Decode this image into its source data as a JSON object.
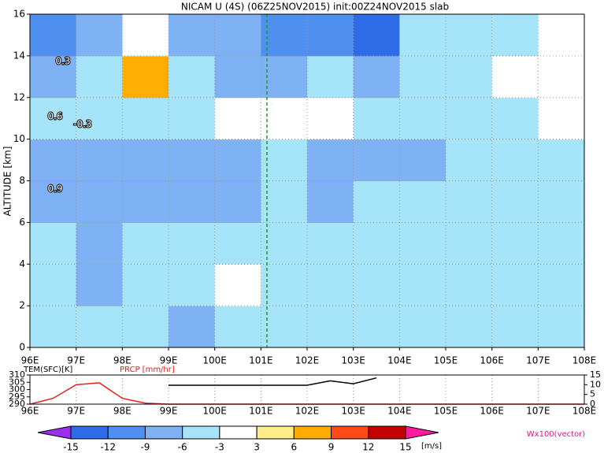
{
  "chart_data": [
    {
      "type": "heatmap",
      "title": "NICAM U (4S) (06Z25NOV2015) init:00Z24NOV2015 slab",
      "ylabel": "ALTITUDE [km]",
      "xlim": [
        96,
        108
      ],
      "xticks": [
        {
          "value": 96,
          "label": "96E"
        },
        {
          "value": 97,
          "label": "97E"
        },
        {
          "value": 98,
          "label": "98E"
        },
        {
          "value": 99,
          "label": "99E"
        },
        {
          "value": 100,
          "label": "100E"
        },
        {
          "value": 101,
          "label": "101E"
        },
        {
          "value": 102,
          "label": "102E"
        },
        {
          "value": 103,
          "label": "103E"
        },
        {
          "value": 104,
          "label": "104E"
        },
        {
          "value": 105,
          "label": "105E"
        },
        {
          "value": 106,
          "label": "106E"
        },
        {
          "value": 107,
          "label": "107E"
        },
        {
          "value": 108,
          "label": "108E"
        }
      ],
      "ylim": [
        0,
        16
      ],
      "yticks": [
        0,
        2,
        4,
        6,
        8,
        10,
        12,
        14,
        16
      ],
      "grid": true,
      "x": [
        96.5,
        97.5,
        98.5,
        99.5,
        100.5,
        101.5,
        102.5,
        103.5,
        104.5,
        105.5,
        106.5,
        107.5
      ],
      "y": [
        1,
        3,
        5,
        7,
        9,
        11,
        13,
        15
      ],
      "values": [
        [
          -4,
          -4,
          -4,
          -7,
          -4,
          -4,
          -4,
          -4,
          -4,
          -4,
          -4,
          -4
        ],
        [
          -4,
          -7,
          -4,
          -4,
          0,
          -4,
          -4,
          -4,
          -4,
          -4,
          -4,
          -4
        ],
        [
          -4,
          -7,
          -4,
          -4,
          -4,
          -4,
          -4,
          -4,
          -4,
          -4,
          -4,
          -4
        ],
        [
          -7,
          -7,
          -7,
          -7,
          -7,
          -4,
          -7,
          -4,
          -4,
          -4,
          -4,
          -4
        ],
        [
          -7,
          -7,
          -7,
          -7,
          -7,
          -4,
          -7,
          -7,
          -7,
          -4,
          -4,
          -4
        ],
        [
          -4,
          -4,
          -4,
          -4,
          0,
          0,
          0,
          -4,
          -4,
          -4,
          -4,
          0
        ],
        [
          -7,
          -4,
          7,
          -4,
          -7,
          -7,
          -4,
          -7,
          -4,
          -4,
          0,
          0
        ],
        [
          -10,
          -7,
          0,
          -7,
          -7,
          -10,
          -10,
          -13,
          -4,
          -4,
          -4,
          0
        ]
      ],
      "levels": [
        -15,
        -12,
        -9,
        -6,
        -3,
        3,
        6,
        9,
        12,
        15
      ],
      "colors": [
        "#9b2ff0",
        "#2e6be6",
        "#4f8ff0",
        "#7fb2f5",
        "#a6e4fa",
        "#ffffff",
        "#ffec8a",
        "#ffad00",
        "#ff4a1a",
        "#c40000",
        "#ff1aa0"
      ],
      "colorbar_label": "[m/s]",
      "annotation": "Wx100(vector)",
      "contour_labels": [
        "-0.3",
        "0.3",
        "0.6",
        "0.9"
      ]
    },
    {
      "type": "line",
      "xlim": [
        96,
        108
      ],
      "xticks": [
        {
          "value": 96,
          "label": "96E"
        },
        {
          "value": 97,
          "label": "97E"
        },
        {
          "value": 98,
          "label": "98E"
        },
        {
          "value": 99,
          "label": "99E"
        },
        {
          "value": 100,
          "label": "100E"
        },
        {
          "value": 101,
          "label": "101E"
        },
        {
          "value": 102,
          "label": "102E"
        },
        {
          "value": 103,
          "label": "103E"
        },
        {
          "value": 104,
          "label": "104E"
        },
        {
          "value": 105,
          "label": "105E"
        },
        {
          "value": 106,
          "label": "106E"
        },
        {
          "value": 107,
          "label": "107E"
        },
        {
          "value": 108,
          "label": "108E"
        }
      ],
      "ylim": [
        290,
        310
      ],
      "yticks": [
        290,
        295,
        300,
        305,
        310
      ],
      "y2lim": [
        0,
        15
      ],
      "y2ticks": [
        0,
        5,
        10,
        15
      ],
      "x": [
        96,
        96.5,
        97,
        97.5,
        98,
        98.5,
        99,
        99.5,
        100,
        100.5,
        101,
        101.5,
        102,
        102.5,
        103,
        103.5,
        104,
        104.5,
        105,
        105.5,
        106,
        106.5,
        107,
        107.5,
        108
      ],
      "series": [
        {
          "name": "TEM(SFC)[K]",
          "color": "#000000",
          "values": [
            null,
            null,
            null,
            null,
            null,
            null,
            303,
            303,
            303,
            303,
            303,
            303,
            303,
            306,
            304,
            308,
            null,
            null,
            null,
            null,
            null,
            null,
            null,
            null,
            null
          ]
        },
        {
          "name": "PRCP [mm/hr]",
          "color": "#e8201a",
          "axis": "y2",
          "values": [
            0,
            3,
            10,
            11,
            3,
            0.5,
            0,
            0,
            0,
            0,
            0,
            0,
            0,
            0,
            0,
            0,
            0,
            0,
            0,
            0,
            0,
            0,
            0,
            0,
            0
          ]
        }
      ]
    }
  ]
}
